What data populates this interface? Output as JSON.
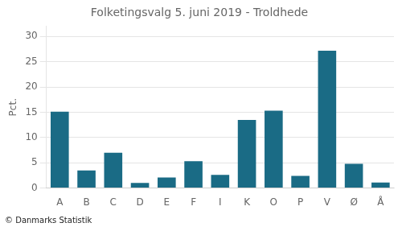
{
  "chart_data": {
    "type": "bar",
    "title": "Folketingsvalg 5. juni 2019 - Troldhede",
    "ylabel": "Pct.",
    "footer": "© Danmarks Statistik",
    "categories": [
      "A",
      "B",
      "C",
      "D",
      "E",
      "F",
      "I",
      "K",
      "O",
      "P",
      "V",
      "Ø",
      "Å"
    ],
    "values": [
      15.1,
      3.5,
      7.0,
      1.0,
      2.1,
      5.3,
      2.6,
      13.5,
      15.3,
      2.4,
      27.2,
      4.8,
      1.1
    ],
    "color": "#1a6b85",
    "ylim": [
      0,
      32
    ],
    "yticks": [
      0,
      5,
      10,
      15,
      20,
      25,
      30
    ],
    "grid": true
  }
}
